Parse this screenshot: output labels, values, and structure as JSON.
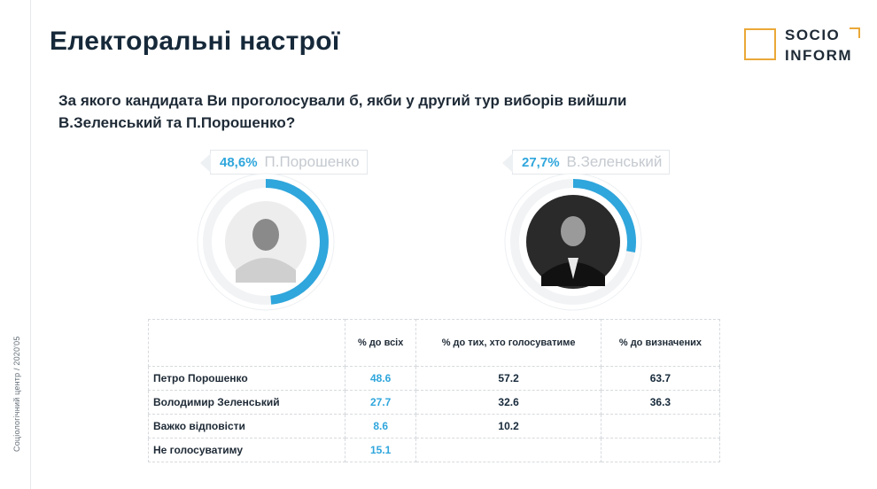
{
  "header": {
    "title": "Електоральні настрої",
    "logo_line1": "SOCIO",
    "logo_line2": "INFORM"
  },
  "side_text": "Соціологічний центр / 2020'05",
  "question": "За якого кандидата Ви проголосували б, якби у другий тур виборів вийшли В.Зеленський та П.Порошенко?",
  "colors": {
    "accent": "#2fa6dc",
    "logo": "#eaa838",
    "ring_bg": "#f1f3f5",
    "title": "#16293a"
  },
  "chart_data": {
    "type": "pie",
    "charts": [
      {
        "name": "П.Порошенко",
        "pct_label": "48,6%",
        "value": 48.6
      },
      {
        "name": "В.Зеленський",
        "pct_label": "27,7%",
        "value": 27.7
      }
    ],
    "table": {
      "columns": [
        "",
        "% до всіх",
        "% до тих, хто голосуватиме",
        "% до визначених"
      ],
      "rows": [
        {
          "name": "Петро Порошенко",
          "values": [
            "48.6",
            "57.2",
            "63.7"
          ]
        },
        {
          "name": "Володимир Зеленський",
          "values": [
            "27.7",
            "32.6",
            "36.3"
          ]
        },
        {
          "name": "Важко відповісти",
          "values": [
            "8.6",
            "10.2",
            ""
          ]
        },
        {
          "name": "Не голосуватиму",
          "values": [
            "15.1",
            "",
            ""
          ]
        }
      ]
    }
  }
}
